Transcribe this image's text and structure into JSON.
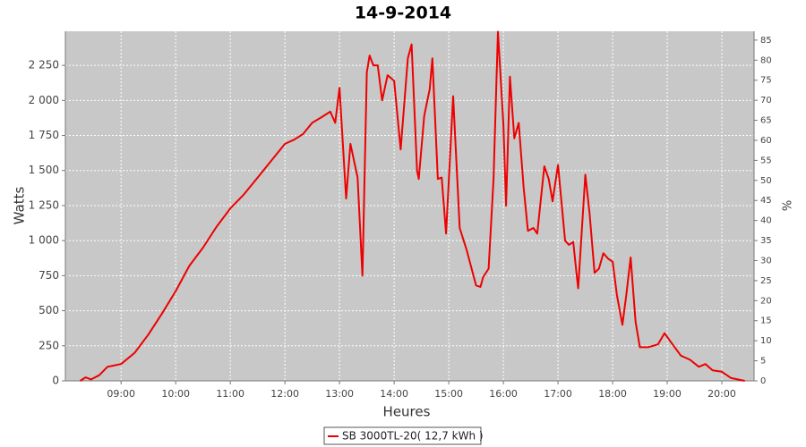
{
  "chart_data": {
    "type": "line",
    "title": "14-9-2014",
    "x_label": "Heures",
    "y_label": "Watts",
    "y2_label": "%",
    "x": [
      8.25,
      8.35,
      8.45,
      8.6,
      8.75,
      9,
      9.25,
      9.5,
      9.75,
      10,
      10.25,
      10.5,
      10.75,
      11,
      11.25,
      11.5,
      11.75,
      12,
      12.17,
      12.33,
      12.5,
      12.67,
      12.83,
      12.92,
      13,
      13.12,
      13.2,
      13.33,
      13.42,
      13.5,
      13.55,
      13.62,
      13.7,
      13.78,
      13.88,
      14,
      14.12,
      14.25,
      14.32,
      14.42,
      14.45,
      14.55,
      14.65,
      14.7,
      14.8,
      14.87,
      14.95,
      15.08,
      15.2,
      15.33,
      15.5,
      15.58,
      15.63,
      15.73,
      15.82,
      15.9,
      16,
      16.05,
      16.12,
      16.2,
      16.28,
      16.37,
      16.45,
      16.55,
      16.62,
      16.75,
      16.83,
      16.9,
      17,
      17.13,
      17.2,
      17.28,
      17.33,
      17.37,
      17.5,
      17.58,
      17.67,
      17.75,
      17.83,
      17.92,
      18,
      18.08,
      18.18,
      18.25,
      18.33,
      18.42,
      18.5,
      18.65,
      18.83,
      18.95,
      19.08,
      19.25,
      19.42,
      19.58,
      19.7,
      19.83,
      20,
      20.17,
      20.42
    ],
    "series": [
      {
        "name": "SB 3000TL-20( 12,7 kWh )",
        "color": "#ee0000",
        "values": [
          0,
          25,
          10,
          40,
          100,
          120,
          200,
          330,
          480,
          640,
          820,
          950,
          1100,
          1230,
          1330,
          1450,
          1570,
          1690,
          1720,
          1760,
          1840,
          1880,
          1920,
          1840,
          2090,
          1300,
          1690,
          1450,
          750,
          2200,
          2320,
          2250,
          2250,
          2000,
          2180,
          2140,
          1650,
          2300,
          2400,
          1500,
          1440,
          1890,
          2080,
          2300,
          1440,
          1450,
          1050,
          2030,
          1090,
          930,
          680,
          670,
          740,
          800,
          1440,
          2490,
          1830,
          1250,
          2170,
          1730,
          1840,
          1380,
          1070,
          1090,
          1050,
          1530,
          1440,
          1280,
          1540,
          1000,
          970,
          990,
          800,
          660,
          1470,
          1190,
          770,
          800,
          910,
          870,
          850,
          610,
          400,
          610,
          880,
          420,
          240,
          240,
          260,
          340,
          270,
          180,
          150,
          100,
          120,
          75,
          65,
          20,
          0
        ]
      }
    ],
    "xlim": [
      7.98,
      20.59
    ],
    "xticks": [
      {
        "value": 9,
        "label": "09:00"
      },
      {
        "value": 10,
        "label": "10:00"
      },
      {
        "value": 11,
        "label": "11:00"
      },
      {
        "value": 12,
        "label": "12:00"
      },
      {
        "value": 13,
        "label": "13:00"
      },
      {
        "value": 14,
        "label": "14:00"
      },
      {
        "value": 15,
        "label": "15:00"
      },
      {
        "value": 16,
        "label": "16:00"
      },
      {
        "value": 17,
        "label": "17:00"
      },
      {
        "value": 18,
        "label": "18:00"
      },
      {
        "value": 19,
        "label": "19:00"
      },
      {
        "value": 20,
        "label": "20:00"
      }
    ],
    "ylim": [
      0,
      2493
    ],
    "yticks": [
      0,
      250,
      500,
      750,
      {
        "value": 1000,
        "label": "1 000"
      },
      {
        "value": 1250,
        "label": "1 250"
      },
      {
        "value": 1500,
        "label": "1 500"
      },
      {
        "value": 1750,
        "label": "1 750"
      },
      {
        "value": 2000,
        "label": "2 000"
      },
      {
        "value": 2250,
        "label": "2 250"
      }
    ],
    "y2lim": [
      0,
      87.2
    ],
    "y2ticks": [
      0,
      5,
      10,
      15,
      20,
      25,
      30,
      35,
      40,
      45,
      50,
      55,
      60,
      65,
      70,
      75,
      80,
      85
    ],
    "grid": true,
    "background": "#c8c8c8",
    "legend": "bottom"
  }
}
